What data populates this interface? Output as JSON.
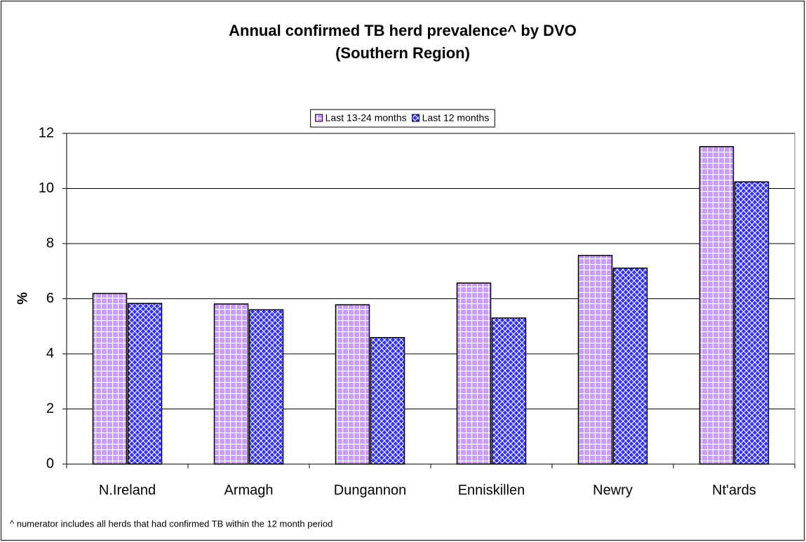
{
  "chart_data": {
    "type": "bar",
    "title": [
      "Annual confirmed TB herd prevalence^ by DVO",
      "(Southern Region)"
    ],
    "y_label": "%",
    "footnote": "^ numerator includes all herds that had confirmed TB within the 12 month period",
    "categories": [
      "N.Ireland",
      "Armagh",
      "Dungannon",
      "Enniskillen",
      "Newry",
      "Nt'ards"
    ],
    "series": [
      {
        "name": "Last 13-24 months",
        "color": "#cc99ff",
        "pattern": "grid",
        "values": [
          6.19,
          5.81,
          5.78,
          6.57,
          7.57,
          11.52
        ]
      },
      {
        "name": "Last 12 months",
        "color": "#3333ff",
        "pattern": "crosshatch",
        "values": [
          5.83,
          5.6,
          4.59,
          5.3,
          7.11,
          10.24
        ]
      }
    ],
    "ylim": [
      0,
      12
    ],
    "yticks": [
      0,
      2,
      4,
      6,
      8,
      10,
      12
    ],
    "grid": true,
    "legend": "top"
  }
}
